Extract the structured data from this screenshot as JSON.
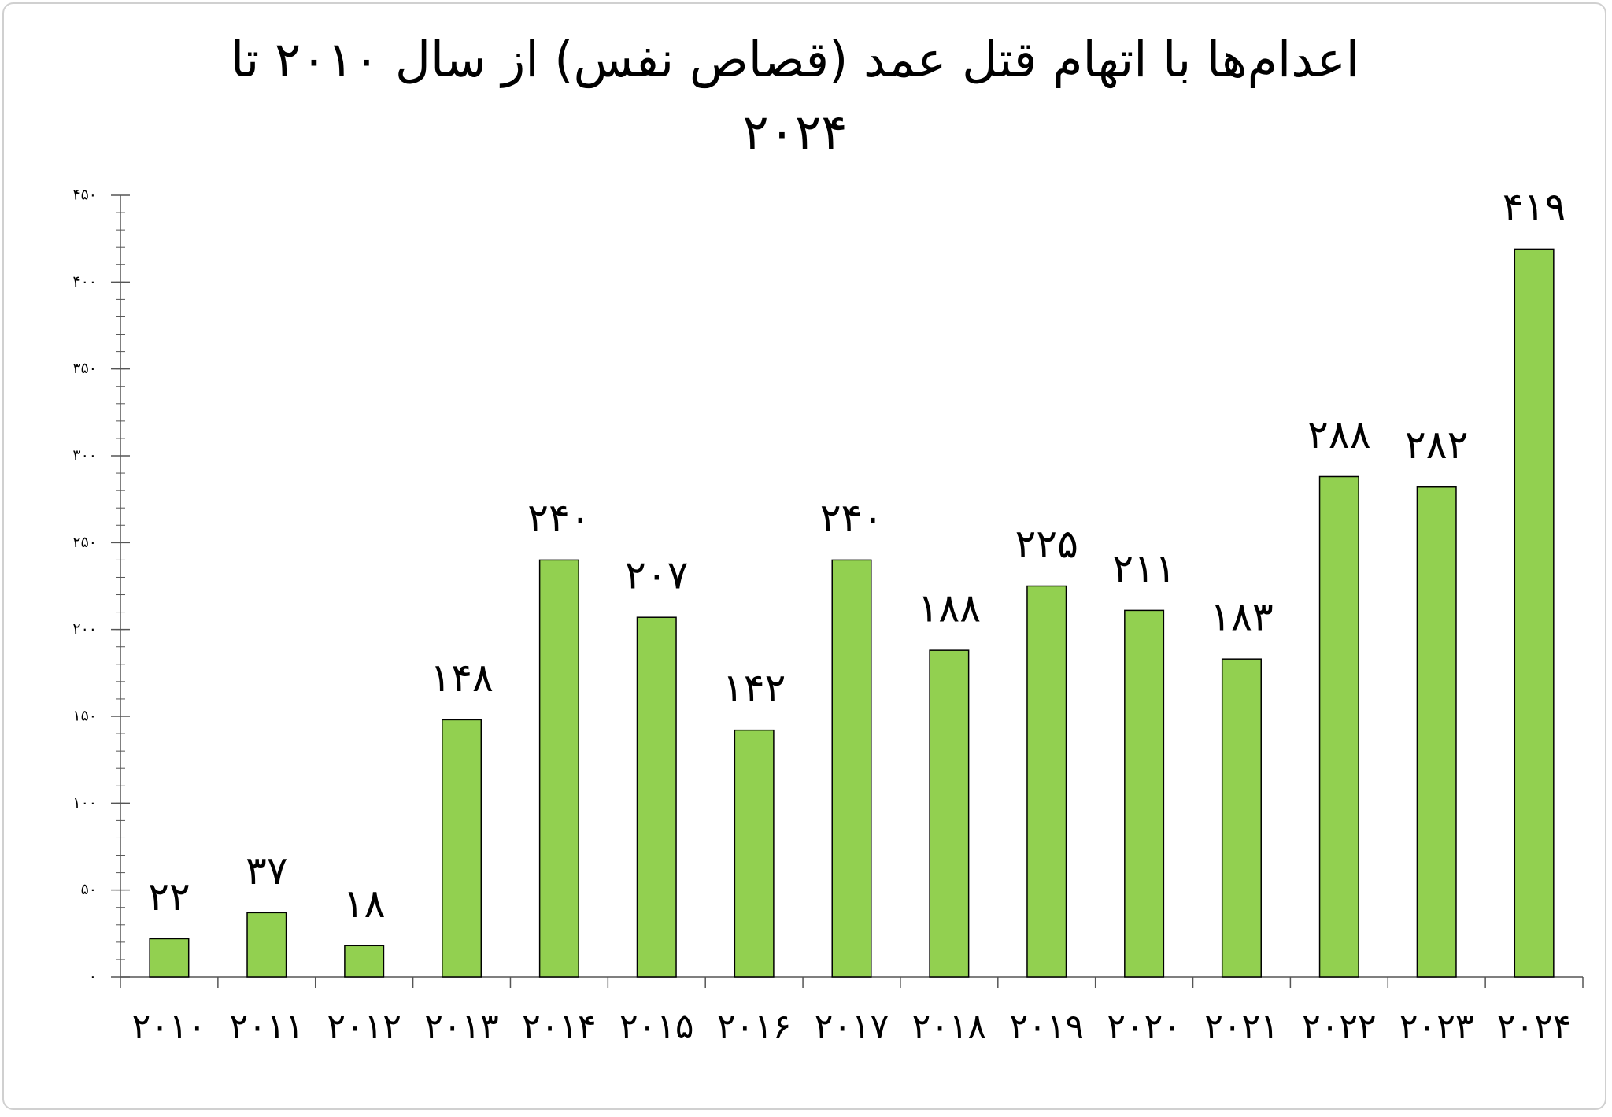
{
  "chart_data": {
    "type": "bar",
    "title": "اعدام‌ها با اتهام قتل عمد (قصاص نفس) از سال ۲۰۱۰ تا ۲۰۲۴",
    "categories": [
      "۲۰۱۰",
      "۲۰۱۱",
      "۲۰۱۲",
      "۲۰۱۳",
      "۲۰۱۴",
      "۲۰۱۵",
      "۲۰۱۶",
      "۲۰۱۷",
      "۲۰۱۸",
      "۲۰۱۹",
      "۲۰۲۰",
      "۲۰۲۱",
      "۲۰۲۲",
      "۲۰۲۳",
      "۲۰۲۴"
    ],
    "values": [
      22,
      37,
      18,
      148,
      240,
      207,
      142,
      240,
      188,
      225,
      211,
      183,
      288,
      282,
      419
    ],
    "value_labels": [
      "۲۲",
      "۳۷",
      "۱۸",
      "۱۴۸",
      "۲۴۰",
      "۲۰۷",
      "۱۴۲",
      "۲۴۰",
      "۱۸۸",
      "۲۲۵",
      "۲۱۱",
      "۱۸۳",
      "۲۸۸",
      "۲۸۲",
      "۴۱۹"
    ],
    "color": "#92d050",
    "ylim": [
      0,
      450
    ],
    "yticks": [
      {
        "value": 0,
        "label": "۰"
      },
      {
        "value": 50,
        "label": "۵۰"
      },
      {
        "value": 100,
        "label": "۱۰۰"
      },
      {
        "value": 150,
        "label": "۱۵۰"
      },
      {
        "value": 200,
        "label": "۲۰۰"
      },
      {
        "value": 250,
        "label": "۲۵۰"
      },
      {
        "value": 300,
        "label": "۳۰۰"
      },
      {
        "value": 350,
        "label": "۳۵۰"
      },
      {
        "value": 400,
        "label": "۴۰۰"
      },
      {
        "value": 450,
        "label": "۴۵۰"
      }
    ],
    "grid": false
  }
}
